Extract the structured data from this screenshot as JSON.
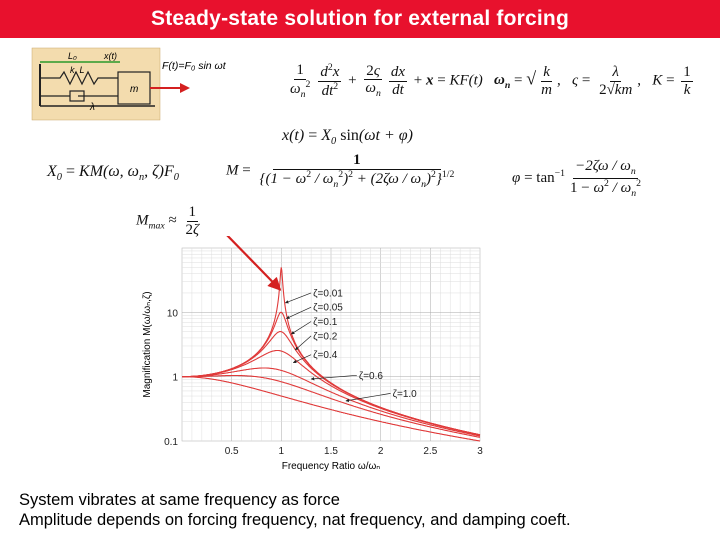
{
  "slide": {
    "title": "Steady-state solution for external forcing",
    "caption_line1": "System vibrates at same frequency as force",
    "caption_line2": "Amplitude depends on forcing frequency, nat frequency, and damping coeft."
  },
  "schematic": {
    "label_L0": "L₀",
    "label_x": "x(t)",
    "label_k": "k, L",
    "label_lambda": "λ",
    "label_m": "m",
    "force_label": "F(t)=F₀ sin ωt"
  },
  "colors": {
    "title_bar": "#e8112d",
    "curve": "#e03a3a",
    "arrow": "#d42020",
    "schematic_bg": "#f3dcae"
  },
  "chart_data": {
    "type": "line",
    "xlabel": "Frequency Ratio ω/ωₙ",
    "ylabel": "Magnification M(ω/ωₙ,ζ)",
    "xlim": [
      0,
      3
    ],
    "ylim": [
      0.1,
      100
    ],
    "y_scale": "log",
    "grid": true,
    "x_ticks": [
      "0.5",
      "1",
      "1.5",
      "2",
      "2.5",
      "3"
    ],
    "y_ticks": [
      "0.1",
      "1",
      "10"
    ],
    "formula_curves": "M = 1 / sqrt((1 - r²)² + (2ζr)²)",
    "series": [
      {
        "name": "ζ=0.01",
        "zeta": 0.01
      },
      {
        "name": "ζ=0.05",
        "zeta": 0.05
      },
      {
        "name": "ζ=0.1",
        "zeta": 0.1
      },
      {
        "name": "ζ=0.2",
        "zeta": 0.2
      },
      {
        "name": "ζ=0.4",
        "zeta": 0.4
      },
      {
        "name": "ζ=0.6",
        "zeta": 0.6
      },
      {
        "name": "ζ=1.0",
        "zeta": 1.0
      }
    ]
  }
}
